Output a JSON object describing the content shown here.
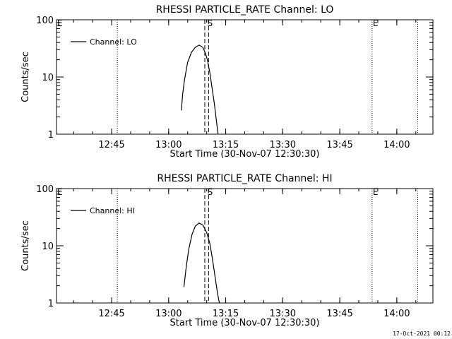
{
  "footer": {
    "timestamp": "17-Oct-2021 00:12"
  },
  "chart_data": [
    {
      "type": "line",
      "title": "RHESSI PARTICLE_RATE Channel: LO",
      "xlabel": "Start Time (30-Nov-07 12:30:30)",
      "ylabel": "Counts/sec",
      "yscale": "log",
      "ylim": [
        1,
        100
      ],
      "xlim": [
        "12:30:30",
        "14:09:30"
      ],
      "x_ticks": [
        "12:45",
        "13:00",
        "13:15",
        "13:30",
        "13:45",
        "14:00"
      ],
      "y_ticks": [
        "1",
        "10",
        "100"
      ],
      "legend": "top-left",
      "grid": false,
      "series": [
        {
          "name": "Channel: LO",
          "x": [
            "13:03:20",
            "13:03:40",
            "13:04:10",
            "13:05:00",
            "13:06:00",
            "13:07:00",
            "13:08:00",
            "13:09:00",
            "13:09:40",
            "13:10:10",
            "13:10:50",
            "13:11:20",
            "13:12:00",
            "13:12:40",
            "13:13:00"
          ],
          "values": [
            2.6,
            5,
            9,
            18,
            27,
            33,
            36,
            33,
            26,
            20,
            12,
            7,
            3.5,
            1.5,
            1.0
          ]
        }
      ],
      "vlines": [
        {
          "x": "12:46:30",
          "style": "dotted"
        },
        {
          "x": "13:09:30",
          "style": "dashed"
        },
        {
          "x": "13:10:30",
          "style": "dashed"
        },
        {
          "x": "13:53:30",
          "style": "dotted"
        },
        {
          "x": "14:05:30",
          "style": "dotted"
        }
      ],
      "markers": [
        {
          "x": "12:30:30",
          "label": "E"
        },
        {
          "x": "13:10:00",
          "label": "S"
        },
        {
          "x": "13:53:30",
          "label": "E"
        }
      ]
    },
    {
      "type": "line",
      "title": "RHESSI PARTICLE_RATE Channel: HI",
      "xlabel": "Start Time (30-Nov-07 12:30:30)",
      "ylabel": "Counts/sec",
      "yscale": "log",
      "ylim": [
        1,
        100
      ],
      "xlim": [
        "12:30:30",
        "14:09:30"
      ],
      "x_ticks": [
        "12:45",
        "13:00",
        "13:15",
        "13:30",
        "13:45",
        "14:00"
      ],
      "y_ticks": [
        "1",
        "10",
        "100"
      ],
      "legend": "top-left",
      "grid": false,
      "series": [
        {
          "name": "Channel: HI",
          "x": [
            "13:04:00",
            "13:04:40",
            "13:05:20",
            "13:06:10",
            "13:07:00",
            "13:08:00",
            "13:09:00",
            "13:10:00",
            "13:10:50",
            "13:11:30",
            "13:12:10",
            "13:12:50",
            "13:13:20"
          ],
          "values": [
            1.9,
            4.5,
            9,
            16,
            22,
            25,
            23,
            17,
            11,
            6,
            3,
            1.5,
            1.0
          ]
        }
      ],
      "vlines": [
        {
          "x": "12:46:30",
          "style": "dotted"
        },
        {
          "x": "13:09:30",
          "style": "dashed"
        },
        {
          "x": "13:10:30",
          "style": "dashed"
        },
        {
          "x": "13:53:30",
          "style": "dotted"
        },
        {
          "x": "14:05:30",
          "style": "dotted"
        }
      ],
      "markers": [
        {
          "x": "12:30:30",
          "label": "E"
        },
        {
          "x": "13:10:00",
          "label": "S"
        },
        {
          "x": "13:53:30",
          "label": "E"
        }
      ]
    }
  ]
}
